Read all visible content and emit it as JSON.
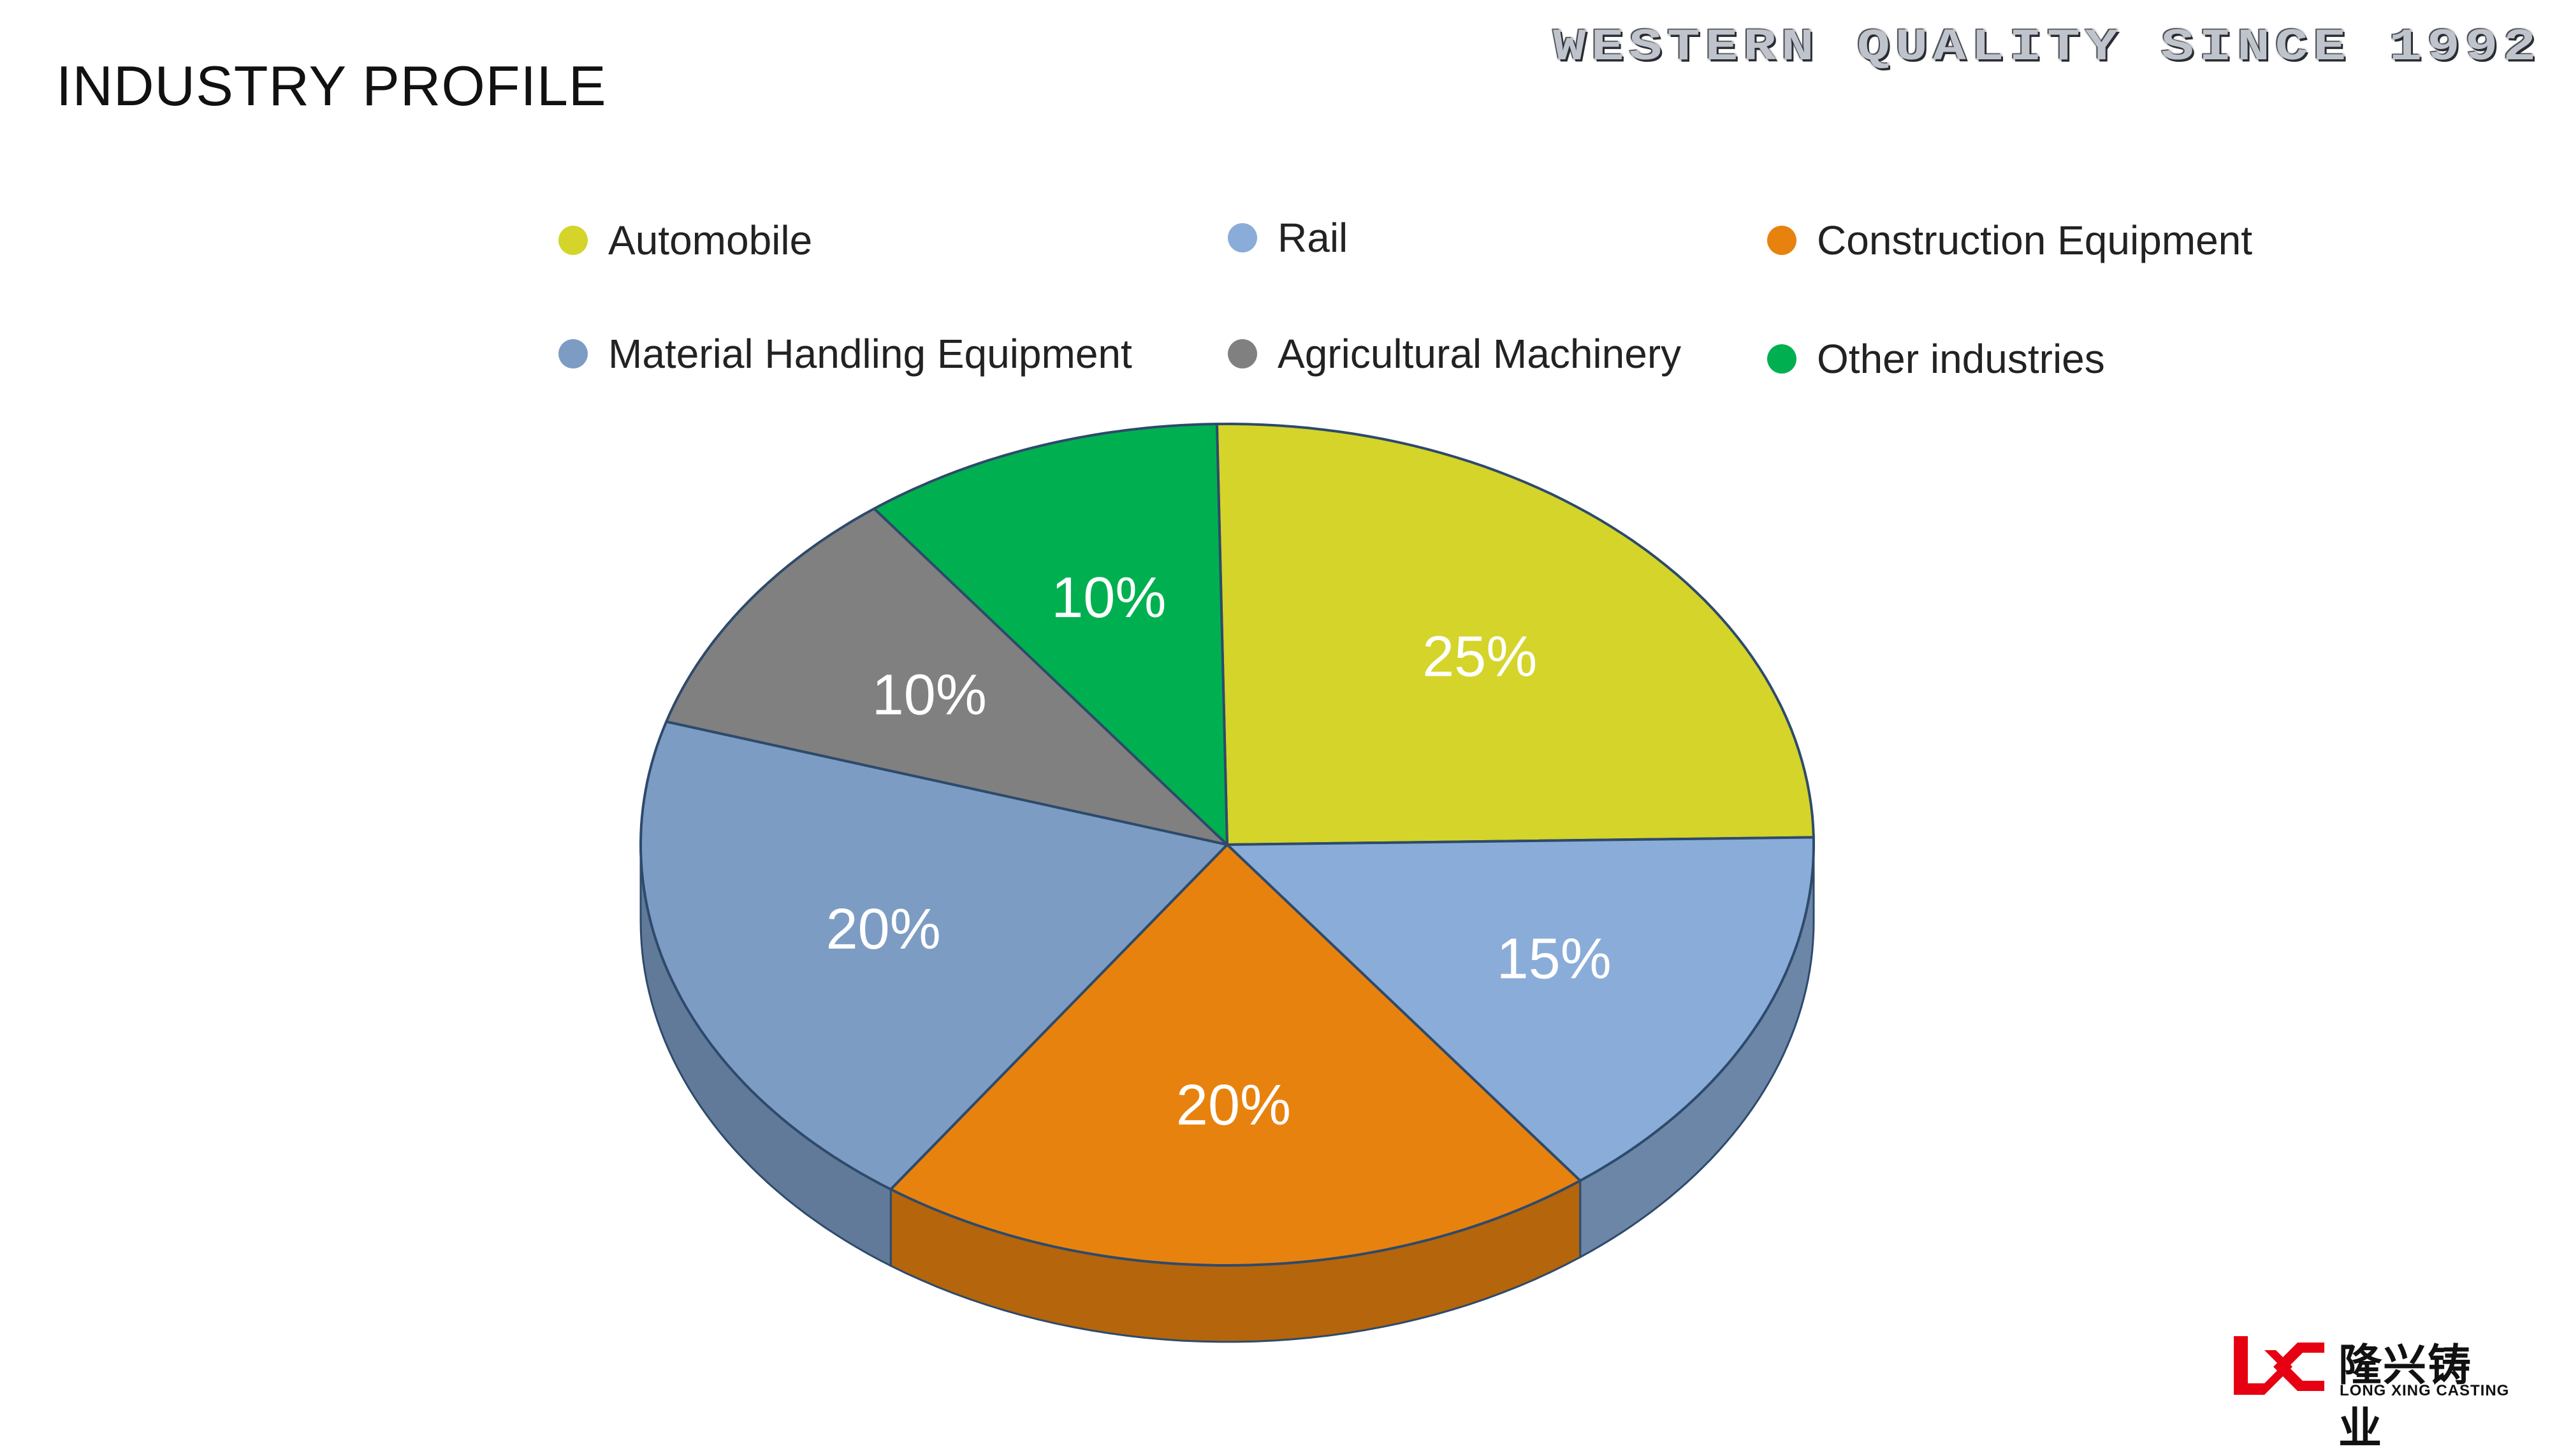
{
  "header": {
    "title": "INDUSTRY PROFILE",
    "tagline": "WESTERN QUALITY SINCE 1992"
  },
  "colors": {
    "automobile": "#d4d42a",
    "rail": "#8aacd8",
    "construction": "#e8820e",
    "material_handling": "#7c9cc4",
    "agricultural": "#808080",
    "other": "#00b050",
    "outline": "#2e4a6b"
  },
  "chart_data": {
    "type": "pie",
    "categories": [
      "Automobile",
      "Rail",
      "Construction Equipment",
      "Material Handling Equipment",
      "Agricultural Machinery",
      "Other industries"
    ],
    "values": [
      25,
      15,
      20,
      20,
      10,
      10
    ],
    "labels": [
      "25%",
      "15%",
      "20%",
      "20%",
      "10%",
      "10%"
    ],
    "legend_position": "top",
    "style": "3d"
  },
  "legend": [
    {
      "label": "Automobile",
      "color": "#d4d42a"
    },
    {
      "label": "Rail",
      "color": "#8aacd8"
    },
    {
      "label": "Construction Equipment",
      "color": "#e8820e"
    },
    {
      "label": "Material Handling Equipment",
      "color": "#7c9cc4"
    },
    {
      "label": "Agricultural Machinery",
      "color": "#808080"
    },
    {
      "label": "Other industries",
      "color": "#00b050"
    }
  ],
  "logo": {
    "chinese": "隆兴铸业",
    "english": "LONG XING CASTING",
    "color": "#e60012"
  }
}
